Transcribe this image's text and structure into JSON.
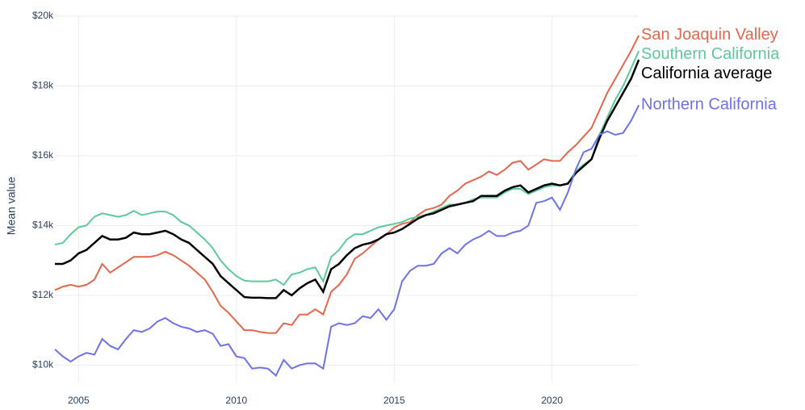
{
  "chart_data": {
    "type": "line",
    "y_label": "Mean value",
    "x": [
      2004.25,
      2004.5,
      2004.75,
      2005,
      2005.25,
      2005.5,
      2005.75,
      2006,
      2006.25,
      2006.5,
      2006.75,
      2007,
      2007.25,
      2007.5,
      2007.75,
      2008,
      2008.25,
      2008.5,
      2008.75,
      2009,
      2009.25,
      2009.5,
      2009.75,
      2010,
      2010.25,
      2010.5,
      2010.75,
      2011,
      2011.25,
      2011.5,
      2011.75,
      2012,
      2012.25,
      2012.5,
      2012.75,
      2013,
      2013.25,
      2013.5,
      2013.75,
      2014,
      2014.25,
      2014.5,
      2014.75,
      2015,
      2015.25,
      2015.5,
      2015.75,
      2016,
      2016.25,
      2016.5,
      2016.75,
      2017,
      2017.25,
      2017.5,
      2017.75,
      2018,
      2018.25,
      2018.5,
      2018.75,
      2019,
      2019.25,
      2019.5,
      2019.75,
      2020,
      2020.25,
      2020.5,
      2020.75,
      2021,
      2021.25,
      2021.5,
      2021.75,
      2022,
      2022.25,
      2022.5,
      2022.75
    ],
    "series": [
      {
        "name": "San Joaquin Valley",
        "color": "#e2674c",
        "values": [
          12150,
          12250,
          12300,
          12250,
          12300,
          12450,
          12900,
          12650,
          12800,
          12950,
          13100,
          13100,
          13100,
          13150,
          13250,
          13150,
          13000,
          12850,
          12650,
          12450,
          12100,
          11700,
          11500,
          11250,
          11000,
          11000,
          10950,
          10920,
          10920,
          11200,
          11150,
          11450,
          11450,
          11600,
          11450,
          12100,
          12300,
          12600,
          13050,
          13200,
          13400,
          13600,
          13750,
          13950,
          14050,
          14100,
          14300,
          14450,
          14500,
          14600,
          14850,
          15000,
          15200,
          15300,
          15400,
          15550,
          15450,
          15600,
          15800,
          15850,
          15600,
          15750,
          15900,
          15850,
          15850,
          16100,
          16300,
          16550,
          16800,
          17300,
          17800,
          18200,
          18600,
          19000,
          19450
        ]
      },
      {
        "name": "Southern California",
        "color": "#5dc99b",
        "values": [
          13450,
          13500,
          13750,
          13950,
          14000,
          14250,
          14350,
          14300,
          14250,
          14300,
          14420,
          14300,
          14350,
          14400,
          14400,
          14300,
          14100,
          14000,
          13800,
          13600,
          13350,
          13000,
          12750,
          12550,
          12420,
          12400,
          12400,
          12400,
          12450,
          12300,
          12600,
          12650,
          12750,
          12800,
          12400,
          13100,
          13300,
          13600,
          13750,
          13750,
          13850,
          13950,
          14000,
          14050,
          14100,
          14200,
          14250,
          14300,
          14400,
          14500,
          14600,
          14600,
          14650,
          14750,
          14800,
          14800,
          14800,
          14950,
          15050,
          15050,
          14900,
          15000,
          15100,
          15150,
          15150,
          15200,
          15550,
          15750,
          15900,
          16600,
          17100,
          17600,
          18000,
          18500,
          19000
        ]
      },
      {
        "name": "California average",
        "color": "#000000",
        "values": [
          12900,
          12900,
          13000,
          13200,
          13300,
          13500,
          13700,
          13600,
          13600,
          13650,
          13800,
          13750,
          13750,
          13800,
          13850,
          13750,
          13600,
          13500,
          13300,
          13100,
          12900,
          12550,
          12350,
          12150,
          11950,
          11930,
          11930,
          11920,
          11920,
          12150,
          12000,
          12200,
          12350,
          12450,
          12100,
          12750,
          12900,
          13150,
          13350,
          13450,
          13500,
          13600,
          13750,
          13800,
          13900,
          14050,
          14200,
          14300,
          14350,
          14450,
          14550,
          14600,
          14650,
          14700,
          14850,
          14850,
          14850,
          15000,
          15100,
          15150,
          14950,
          15050,
          15150,
          15200,
          15150,
          15200,
          15500,
          15700,
          15900,
          16500,
          17000,
          17400,
          17800,
          18200,
          18750
        ]
      },
      {
        "name": "Northern California",
        "color": "#6d72e6",
        "values": [
          10450,
          10250,
          10100,
          10250,
          10350,
          10300,
          10750,
          10550,
          10450,
          10750,
          11000,
          10950,
          11050,
          11250,
          11350,
          11200,
          11100,
          11050,
          10950,
          11000,
          10900,
          10550,
          10600,
          10250,
          10200,
          9900,
          9930,
          9900,
          9700,
          10150,
          9900,
          10000,
          10050,
          10050,
          9900,
          11100,
          11200,
          11150,
          11200,
          11400,
          11350,
          11600,
          11300,
          11600,
          12400,
          12700,
          12850,
          12850,
          12900,
          13200,
          13350,
          13200,
          13450,
          13600,
          13700,
          13850,
          13700,
          13700,
          13800,
          13850,
          14000,
          14650,
          14700,
          14800,
          14450,
          14950,
          15600,
          16100,
          16200,
          16600,
          16700,
          16600,
          16650,
          17000,
          17450
        ]
      }
    ],
    "xlim": [
      2004.25,
      2023
    ],
    "xticks": [
      2005,
      2010,
      2015,
      2020
    ],
    "ylim": [
      9500,
      20000
    ],
    "yticks": [
      {
        "value": 10000,
        "label": "$10k"
      },
      {
        "value": 12000,
        "label": "$12k"
      },
      {
        "value": 14000,
        "label": "$14k"
      },
      {
        "value": 16000,
        "label": "$16k"
      },
      {
        "value": 18000,
        "label": "$18k"
      },
      {
        "value": 20000,
        "label": "$20k"
      }
    ],
    "grid": true
  }
}
